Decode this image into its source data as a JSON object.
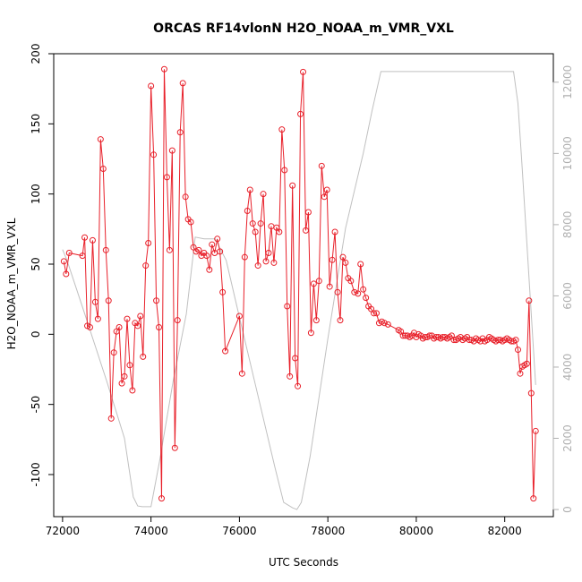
{
  "chart_data": {
    "type": "line",
    "title": "ORCAS RF14vlonN H2O_NOAA_m_VMR_VXL",
    "xlabel": "UTC Seconds",
    "ylabel": "H2O_NOAA_m_VMR_VXL",
    "xlim": [
      71800,
      83100
    ],
    "ylim": [
      -130,
      200
    ],
    "y2lim": [
      -200,
      12800
    ],
    "x_ticks": [
      "72000",
      "74000",
      "76000",
      "78000",
      "80000",
      "82000"
    ],
    "y_ticks": [
      "-100",
      "-50",
      "0",
      "50",
      "100",
      "150",
      "200"
    ],
    "y2_ticks": [
      "0",
      "2000",
      "4000",
      "6000",
      "8000",
      "10000",
      "12000"
    ],
    "colors": {
      "series": "#e8202a",
      "altitude": "#c0c0c0",
      "right_axis": "#b0b0b0",
      "frame": "#000000"
    },
    "series": [
      {
        "points": [
          [
            72030,
            52
          ],
          [
            72080,
            43
          ],
          [
            72150,
            58
          ],
          [
            72450,
            56
          ],
          [
            72500,
            69
          ],
          [
            72560,
            6
          ],
          [
            72620,
            5
          ],
          [
            72680,
            67
          ],
          [
            72740,
            23
          ],
          [
            72800,
            11
          ],
          [
            72860,
            139
          ],
          [
            72920,
            118
          ],
          [
            72980,
            60
          ],
          [
            73040,
            24
          ],
          [
            73100,
            -60
          ],
          [
            73160,
            -13
          ],
          [
            73220,
            2
          ],
          [
            73280,
            5
          ],
          [
            73340,
            -35
          ],
          [
            73400,
            -30
          ],
          [
            73460,
            11
          ],
          [
            73520,
            -22
          ],
          [
            73580,
            -40
          ],
          [
            73640,
            8
          ],
          [
            73700,
            6
          ],
          [
            73760,
            13
          ],
          [
            73820,
            -16
          ],
          [
            73880,
            49
          ],
          [
            73940,
            65
          ],
          [
            74000,
            177
          ],
          [
            74060,
            128
          ],
          [
            74120,
            24
          ],
          [
            74180,
            5
          ],
          [
            74240,
            -117
          ],
          [
            74300,
            189
          ],
          [
            74360,
            112
          ],
          [
            74420,
            60
          ],
          [
            74480,
            131
          ],
          [
            74540,
            -81
          ],
          [
            74600,
            10
          ],
          [
            74660,
            144
          ],
          [
            74720,
            179
          ],
          [
            74780,
            98
          ],
          [
            74840,
            82
          ],
          [
            74900,
            80
          ],
          [
            74960,
            62
          ],
          [
            75020,
            59
          ],
          [
            75080,
            60
          ],
          [
            75140,
            56
          ],
          [
            75200,
            58
          ],
          [
            75260,
            56
          ],
          [
            75320,
            46
          ],
          [
            75380,
            64
          ],
          [
            75440,
            58
          ],
          [
            75500,
            68
          ],
          [
            75560,
            59
          ],
          [
            75620,
            30
          ],
          [
            75680,
            -12
          ],
          [
            76000,
            13
          ],
          [
            76060,
            -28
          ],
          [
            76120,
            55
          ],
          [
            76180,
            88
          ],
          [
            76240,
            103
          ],
          [
            76300,
            79
          ],
          [
            76360,
            73
          ],
          [
            76420,
            49
          ],
          [
            76480,
            79
          ],
          [
            76540,
            100
          ],
          [
            76600,
            52
          ],
          [
            76660,
            58
          ],
          [
            76720,
            77
          ],
          [
            76780,
            51
          ],
          [
            76840,
            76
          ],
          [
            76900,
            73
          ],
          [
            76960,
            146
          ],
          [
            77020,
            117
          ],
          [
            77080,
            20
          ],
          [
            77140,
            -30
          ],
          [
            77200,
            106
          ],
          [
            77260,
            -17
          ],
          [
            77320,
            -37
          ],
          [
            77380,
            157
          ],
          [
            77440,
            187
          ],
          [
            77500,
            74
          ],
          [
            77560,
            87
          ],
          [
            77620,
            1
          ],
          [
            77680,
            36
          ],
          [
            77740,
            10
          ],
          [
            77800,
            38
          ],
          [
            77860,
            120
          ],
          [
            77920,
            98
          ],
          [
            77980,
            103
          ],
          [
            78040,
            34
          ],
          [
            78100,
            53
          ],
          [
            78160,
            73
          ],
          [
            78220,
            30
          ],
          [
            78280,
            10
          ],
          [
            78340,
            55
          ],
          [
            78400,
            51
          ],
          [
            78460,
            40
          ],
          [
            78520,
            38
          ],
          [
            78600,
            30
          ],
          [
            78680,
            29
          ],
          [
            78740,
            50
          ],
          [
            78800,
            32
          ],
          [
            78860,
            26
          ],
          [
            78920,
            20
          ],
          [
            78980,
            18
          ],
          [
            79040,
            15
          ],
          [
            79100,
            15
          ],
          [
            79160,
            8
          ],
          [
            79220,
            9
          ],
          [
            79280,
            8
          ],
          [
            79360,
            7
          ],
          [
            79600,
            3
          ],
          [
            79650,
            2
          ],
          [
            79700,
            -1
          ],
          [
            79750,
            -1
          ],
          [
            79800,
            -1
          ],
          [
            79850,
            -2
          ],
          [
            79900,
            -1
          ],
          [
            79950,
            1
          ],
          [
            80000,
            -2
          ],
          [
            80050,
            0
          ],
          [
            80100,
            -1
          ],
          [
            80150,
            -3
          ],
          [
            80200,
            -2
          ],
          [
            80250,
            -2
          ],
          [
            80300,
            -1
          ],
          [
            80350,
            -1
          ],
          [
            80400,
            -3
          ],
          [
            80450,
            -2
          ],
          [
            80500,
            -2
          ],
          [
            80550,
            -3
          ],
          [
            80600,
            -2
          ],
          [
            80650,
            -2
          ],
          [
            80700,
            -3
          ],
          [
            80750,
            -2
          ],
          [
            80800,
            -1
          ],
          [
            80850,
            -4
          ],
          [
            80900,
            -4
          ],
          [
            80950,
            -3
          ],
          [
            81000,
            -2
          ],
          [
            81050,
            -4
          ],
          [
            81100,
            -3
          ],
          [
            81150,
            -2
          ],
          [
            81200,
            -4
          ],
          [
            81250,
            -4
          ],
          [
            81300,
            -5
          ],
          [
            81350,
            -3
          ],
          [
            81400,
            -4
          ],
          [
            81450,
            -5
          ],
          [
            81500,
            -3
          ],
          [
            81550,
            -5
          ],
          [
            81600,
            -4
          ],
          [
            81650,
            -2
          ],
          [
            81700,
            -3
          ],
          [
            81750,
            -4
          ],
          [
            81800,
            -5
          ],
          [
            81850,
            -4
          ],
          [
            81900,
            -4
          ],
          [
            81950,
            -5
          ],
          [
            82000,
            -4
          ],
          [
            82050,
            -3
          ],
          [
            82100,
            -4
          ],
          [
            82150,
            -5
          ],
          [
            82200,
            -5
          ],
          [
            82250,
            -4
          ],
          [
            82300,
            -11
          ],
          [
            82350,
            -28
          ],
          [
            82400,
            -23
          ],
          [
            82450,
            -22
          ],
          [
            82500,
            -21
          ],
          [
            82550,
            24
          ],
          [
            82600,
            -42
          ],
          [
            82650,
            -117
          ],
          [
            82700,
            -69
          ]
        ]
      },
      {
        "axis": "right",
        "points": [
          [
            72000,
            7300
          ],
          [
            72100,
            7000
          ],
          [
            72500,
            5500
          ],
          [
            73000,
            3600
          ],
          [
            73400,
            2000
          ],
          [
            73600,
            350
          ],
          [
            73700,
            100
          ],
          [
            73800,
            80
          ],
          [
            74000,
            80
          ],
          [
            74200,
            1400
          ],
          [
            74500,
            3600
          ],
          [
            74800,
            5500
          ],
          [
            75000,
            7650
          ],
          [
            75200,
            7600
          ],
          [
            75450,
            7600
          ],
          [
            75700,
            7000
          ],
          [
            76000,
            5400
          ],
          [
            76400,
            3300
          ],
          [
            76800,
            1200
          ],
          [
            77000,
            200
          ],
          [
            77200,
            50
          ],
          [
            77300,
            0
          ],
          [
            77400,
            200
          ],
          [
            77600,
            1500
          ],
          [
            78000,
            4800
          ],
          [
            78400,
            7900
          ],
          [
            78800,
            10000
          ],
          [
            79000,
            11200
          ],
          [
            79200,
            12300
          ],
          [
            79600,
            12300
          ],
          [
            80500,
            12300
          ],
          [
            81500,
            12300
          ],
          [
            82200,
            12300
          ],
          [
            82300,
            11400
          ],
          [
            82400,
            9500
          ],
          [
            82600,
            5500
          ],
          [
            82700,
            3500
          ]
        ]
      }
    ]
  }
}
